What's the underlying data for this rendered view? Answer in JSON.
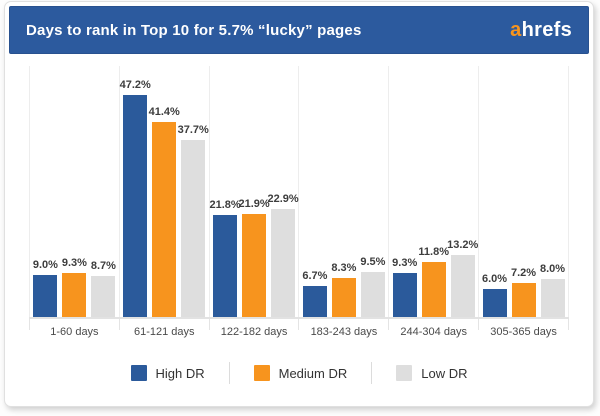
{
  "header": {
    "title": "Days to rank in Top 10 for 5.7% “lucky” pages",
    "logo_prefix": "a",
    "logo_suffix": "hrefs"
  },
  "colors": {
    "header_bg": "#2c5a9e",
    "logo_prefix_color": "#f7941e",
    "high_dr": "#2b5a9b",
    "medium_dr": "#f7941e",
    "low_dr": "#dedede"
  },
  "chart_data": {
    "type": "bar",
    "title": "Days to rank in Top 10 for 5.7% “lucky” pages",
    "categories": [
      "1-60 days",
      "61-121 days",
      "122-182 days",
      "183-243 days",
      "244-304 days",
      "305-365 days"
    ],
    "series": [
      {
        "name": "High DR",
        "color": "#2b5a9b",
        "values": [
          9.0,
          47.2,
          21.8,
          6.7,
          9.3,
          6.0
        ]
      },
      {
        "name": "Medium DR",
        "color": "#f7941e",
        "values": [
          9.3,
          41.4,
          21.9,
          8.3,
          11.8,
          7.2
        ]
      },
      {
        "name": "Low DR",
        "color": "#dedede",
        "values": [
          8.7,
          37.7,
          22.9,
          9.5,
          13.2,
          8.0
        ]
      }
    ],
    "value_suffix": "%",
    "value_labels": true,
    "xlabel": "",
    "ylabel": "",
    "ylim": [
      0,
      50
    ],
    "grid": false,
    "legend_position": "bottom"
  }
}
